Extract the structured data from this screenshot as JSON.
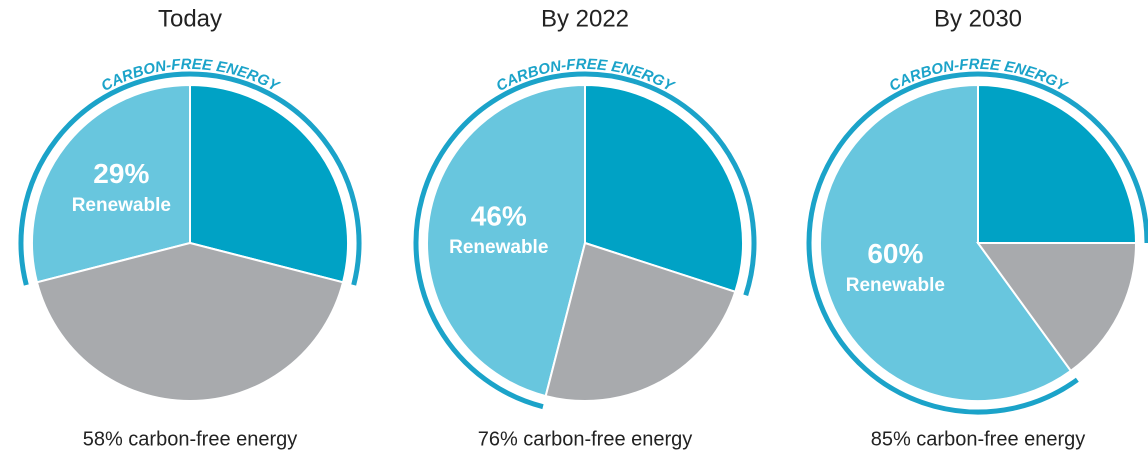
{
  "chart_data": [
    {
      "type": "pie",
      "title": "Today",
      "arc_label": "CARBON-FREE ENERGY",
      "caption": "58% carbon-free energy",
      "categories": [
        "Renewable",
        null,
        null
      ],
      "values": [
        29,
        29,
        42
      ],
      "value_labels": [
        "29%",
        null,
        null
      ],
      "colors": [
        "#68c6de",
        "#00a2c5",
        "#a8aaad"
      ]
    },
    {
      "type": "pie",
      "title": "By 2022",
      "arc_label": "CARBON-FREE ENERGY",
      "caption": "76% carbon-free energy",
      "categories": [
        "Renewable",
        null,
        null
      ],
      "values": [
        46,
        30,
        24
      ],
      "value_labels": [
        "46%",
        null,
        null
      ],
      "colors": [
        "#68c6de",
        "#00a2c5",
        "#a8aaad"
      ]
    },
    {
      "type": "pie",
      "title": "By 2030",
      "arc_label": "CARBON-FREE ENERGY",
      "caption": "85% carbon-free energy",
      "categories": [
        "Renewable",
        null,
        null
      ],
      "values": [
        60,
        25,
        15
      ],
      "value_labels": [
        "60%",
        null,
        null
      ],
      "colors": [
        "#68c6de",
        "#00a2c5",
        "#a8aaad"
      ]
    }
  ]
}
